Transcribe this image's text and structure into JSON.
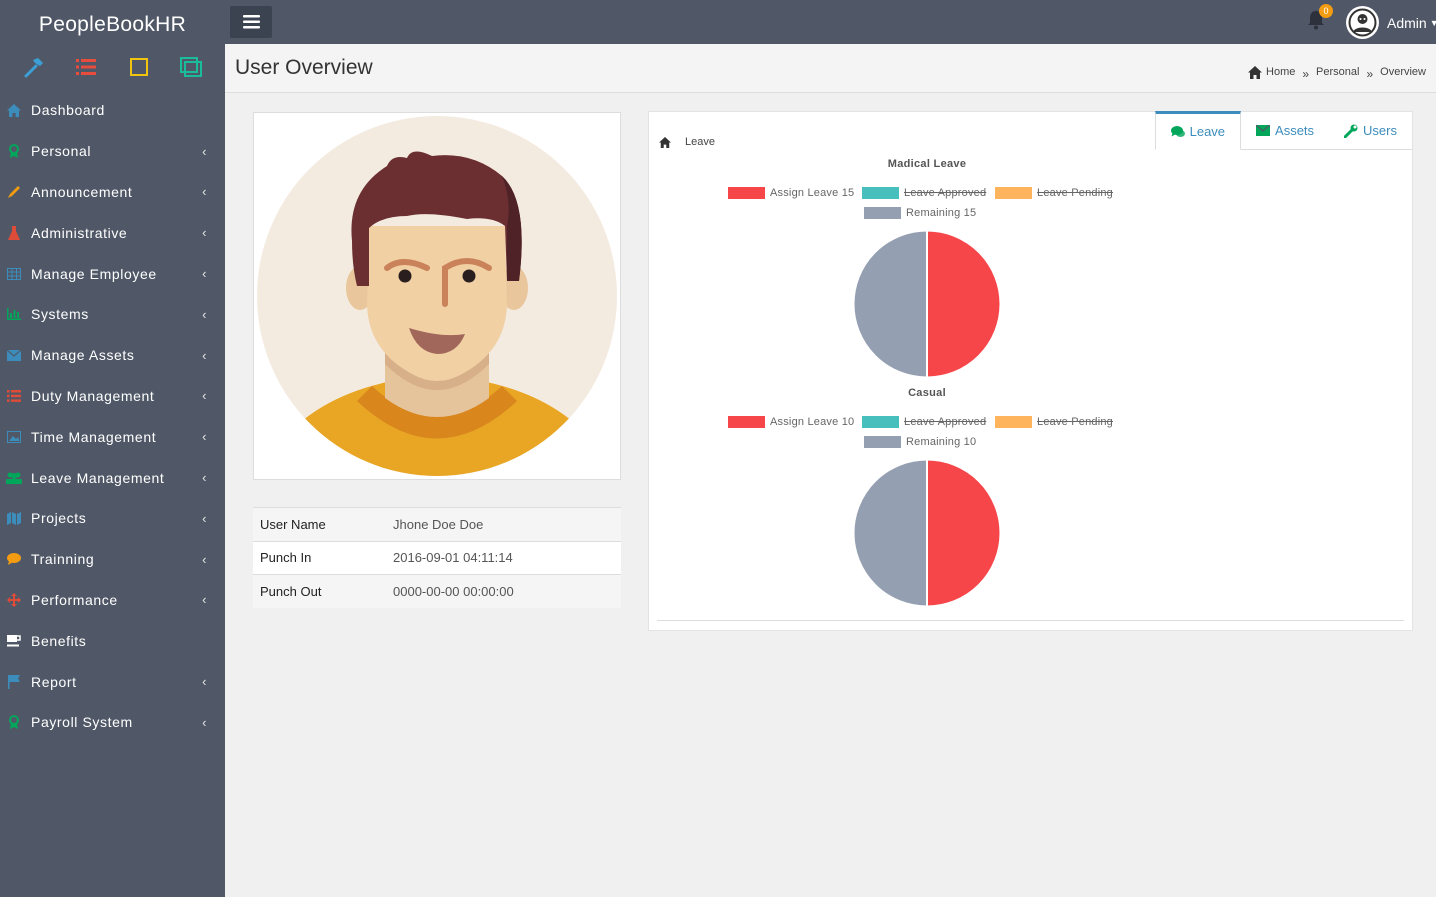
{
  "app": {
    "brand": "PeopleBookHR"
  },
  "quick_icons": [
    "hammer-icon",
    "list-icon",
    "square-icon",
    "window-icon"
  ],
  "sidebar": {
    "items": [
      {
        "label": "Dashboard",
        "icon": "home-icon",
        "color": "#3c8dbc",
        "has_children": false
      },
      {
        "label": "Personal",
        "icon": "award-icon",
        "color": "#00a65a",
        "has_children": true
      },
      {
        "label": "Announcement",
        "icon": "pencil-icon",
        "color": "#f39c12",
        "has_children": true
      },
      {
        "label": "Administrative",
        "icon": "flask-icon",
        "color": "#dd4b39",
        "has_children": true
      },
      {
        "label": "Manage Employee",
        "icon": "table-icon",
        "color": "#3c8dbc",
        "has_children": true
      },
      {
        "label": "Systems",
        "icon": "bar-chart-icon",
        "color": "#00a65a",
        "has_children": true
      },
      {
        "label": "Manage Assets",
        "icon": "envelope-icon",
        "color": "#3c8dbc",
        "has_children": true
      },
      {
        "label": "Duty Management",
        "icon": "list-icon",
        "color": "#dd4b39",
        "has_children": true
      },
      {
        "label": "Time Management",
        "icon": "picture-icon",
        "color": "#3c8dbc",
        "has_children": true
      },
      {
        "label": "Leave Management",
        "icon": "users-icon",
        "color": "#00a65a",
        "has_children": true
      },
      {
        "label": "Projects",
        "icon": "map-icon",
        "color": "#3c8dbc",
        "has_children": true
      },
      {
        "label": "Trainning",
        "icon": "comment-icon",
        "color": "#f39c12",
        "has_children": true
      },
      {
        "label": "Performance",
        "icon": "arrows-icon",
        "color": "#dd4b39",
        "has_children": true
      },
      {
        "label": "Benefits",
        "icon": "coffee-icon",
        "color": "#ffffff",
        "has_children": false
      },
      {
        "label": "Report",
        "icon": "flag-icon",
        "color": "#3c8dbc",
        "has_children": true
      },
      {
        "label": "Payroll System",
        "icon": "award-icon",
        "color": "#00a65a",
        "has_children": true
      }
    ]
  },
  "topbar": {
    "notification_count": "0",
    "user_name": "Admin"
  },
  "page": {
    "title": "User Overview",
    "breadcrumb": [
      "Home",
      "Personal",
      "Overview"
    ]
  },
  "profile": {
    "rows": [
      {
        "key": "User Name",
        "value": "Jhone Doe Doe"
      },
      {
        "key": "Punch In",
        "value": "2016-09-01 04:11:14"
      },
      {
        "key": "Punch Out",
        "value": "0000-00-00 00:00:00"
      }
    ]
  },
  "panel": {
    "heading": "Leave",
    "tabs": [
      {
        "label": "Leave",
        "icon": "comments-icon",
        "active": true
      },
      {
        "label": "Assets",
        "icon": "envelope-icon",
        "active": false
      },
      {
        "label": "Users",
        "icon": "wrench-icon",
        "active": false
      }
    ]
  },
  "chart_data": [
    {
      "type": "pie",
      "title": "Madical Leave",
      "series": [
        {
          "name": "Assign Leave 15",
          "value": 15,
          "color": "#f7464a",
          "hidden": false
        },
        {
          "name": "Leave Approved",
          "value": 0,
          "color": "#46bfbd",
          "hidden": true
        },
        {
          "name": "Leave Pending",
          "value": 0,
          "color": "#fdb45c",
          "hidden": true
        },
        {
          "name": "Remaining 15",
          "value": 15,
          "color": "#949fb1",
          "hidden": false
        }
      ]
    },
    {
      "type": "pie",
      "title": "Casual",
      "series": [
        {
          "name": "Assign Leave 10",
          "value": 10,
          "color": "#f7464a",
          "hidden": false
        },
        {
          "name": "Leave Approved",
          "value": 0,
          "color": "#46bfbd",
          "hidden": true
        },
        {
          "name": "Leave Pending",
          "value": 0,
          "color": "#fdb45c",
          "hidden": true
        },
        {
          "name": "Remaining 10",
          "value": 10,
          "color": "#949fb1",
          "hidden": false
        }
      ]
    }
  ]
}
